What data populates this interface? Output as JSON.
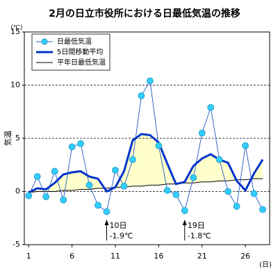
{
  "chart_data": {
    "type": "line",
    "title": "2月の日立市役所における日最低気温の推移",
    "y_unit": "(℃)",
    "y_label": "気温",
    "x_unit": "(日)",
    "x": [
      1,
      2,
      3,
      4,
      5,
      6,
      7,
      8,
      9,
      10,
      11,
      12,
      13,
      14,
      15,
      16,
      17,
      18,
      19,
      20,
      21,
      22,
      23,
      24,
      25,
      26,
      27,
      28
    ],
    "series": [
      {
        "name": "日最低気温",
        "color": "#33ccff",
        "values": [
          -0.4,
          1.4,
          -0.5,
          1.9,
          -0.8,
          4.2,
          4.5,
          0.6,
          -1.3,
          -1.9,
          2.0,
          0.5,
          3.0,
          9.0,
          10.4,
          4.3,
          0.1,
          -0.3,
          -1.8,
          1.3,
          5.5,
          7.9,
          3.0,
          0.0,
          -1.4,
          4.3,
          -0.2,
          -1.7
        ]
      },
      {
        "name": "5日間移動平均",
        "color": "#0033cc",
        "values": [
          -0.1,
          0.3,
          0.2,
          0.8,
          1.6,
          1.8,
          1.9,
          1.4,
          1.2,
          0.0,
          0.4,
          1.9,
          4.8,
          5.4,
          5.3,
          4.6,
          2.6,
          0.7,
          0.9,
          2.4,
          3.1,
          3.5,
          3.0,
          2.7,
          1.0,
          0.1,
          1.7,
          3.0
        ]
      },
      {
        "name": "平年日最低気温",
        "color": "#000000",
        "values": [
          -0.1,
          0.0,
          0.0,
          0.0,
          0.1,
          0.1,
          0.2,
          0.2,
          0.3,
          0.3,
          0.4,
          0.4,
          0.5,
          0.5,
          0.6,
          0.6,
          0.7,
          0.7,
          0.8,
          0.8,
          0.9,
          0.9,
          1.0,
          1.0,
          1.1,
          1.1,
          1.2,
          1.2
        ]
      }
    ],
    "fill_color": "#ffffcc",
    "xlim": [
      0.5,
      28.8
    ],
    "xticks": [
      1,
      6,
      11,
      16,
      21,
      26
    ],
    "ylim": [
      -5,
      15
    ],
    "yticks": [
      -5,
      0,
      5,
      10,
      15
    ],
    "grid": true,
    "annotations": [
      {
        "x": 10,
        "lines": [
          "10日",
          "-1.9℃"
        ]
      },
      {
        "x": 19,
        "lines": [
          "19日",
          "-1.8℃"
        ]
      }
    ]
  }
}
